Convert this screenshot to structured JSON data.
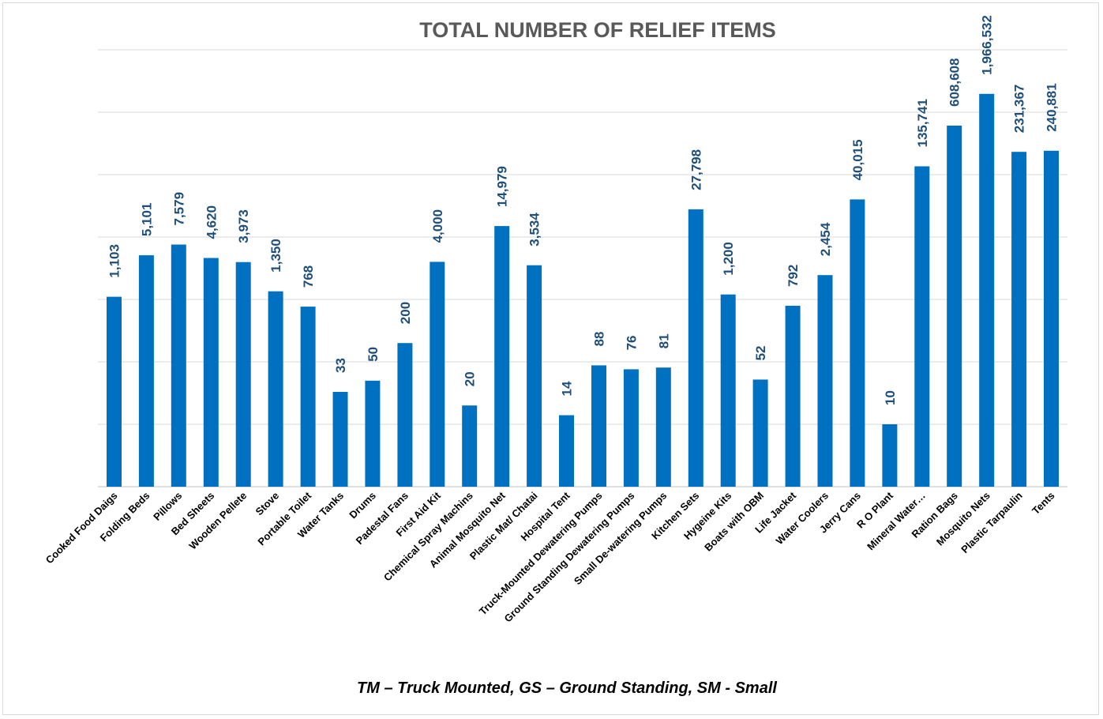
{
  "chart_data": {
    "type": "bar",
    "title": "TOTAL NUMBER OF RELIEF ITEMS",
    "footnote": "TM – Truck Mounted, GS – Ground Standing, SM - Small",
    "scale": "log",
    "grid": true,
    "legend": "none",
    "bar_color": "#0070c0",
    "label_color": "#1f4e79",
    "categories": [
      "Cooked Food Daigs",
      "Folding Beds",
      "Pillows",
      "Bed Sheets",
      "Wooden Pellete",
      "Stove",
      "Portable Toilet",
      "Water Tanks",
      "Drums",
      "Padestal Fans",
      "First Aid Kit",
      "Chemical Spray Machins",
      "Animal Mosquito Net",
      "Plastic Mat/ Chatai",
      "Hospital Tent",
      "Truck-Mounted Dewatering Pumps",
      "Ground Standing Dewatering Pumps",
      "Small De-watering Pumps",
      "Kitchen Sets",
      "Hygeine Kits",
      "Boats with OBM",
      "Life Jacket",
      "Water Coolers",
      "Jerry Cans",
      "R O Plant",
      "Mineral Water…",
      "Ration Bags",
      "Mosquito Nets",
      "Plastic Tarpaulin",
      "Tents"
    ],
    "values": [
      1103,
      5101,
      7579,
      4620,
      3973,
      1350,
      768,
      33,
      50,
      200,
      4000,
      20,
      14979,
      3534,
      14,
      88,
      76,
      81,
      27798,
      1200,
      52,
      792,
      2454,
      40015,
      10,
      135741,
      608608,
      1966532,
      231367,
      240881
    ],
    "value_labels": [
      "1,103",
      "5,101",
      "7,579",
      "4,620",
      "3,973",
      "1,350",
      "768",
      "33",
      "50",
      "200",
      "4,000",
      "20",
      "14,979",
      "3,534",
      "14",
      "88",
      "76",
      "81",
      "27,798",
      "1,200",
      "52",
      "792",
      "2,454",
      "40,015",
      "10",
      "135,741",
      "608,608",
      "1,966,532",
      "231,367",
      "240,881"
    ]
  }
}
